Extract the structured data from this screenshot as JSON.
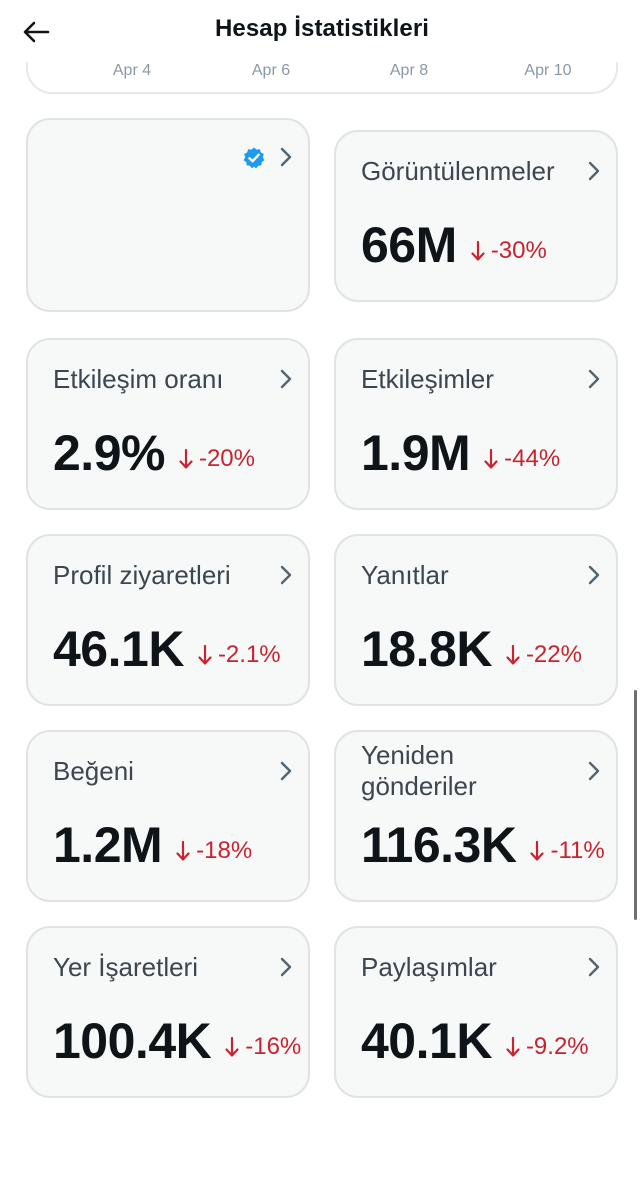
{
  "header": {
    "title": "Hesap İstatistikleri",
    "back_icon": "arrow-left-icon"
  },
  "chart": {
    "x_ticks": [
      "Apr 4",
      "Apr 6",
      "Apr 8",
      "Apr 10"
    ]
  },
  "cards": [
    {
      "label": "Görüntülenmeler",
      "value": "66M",
      "delta": "-30%"
    },
    {
      "label": "Etkileşim oranı",
      "value": "2.9%",
      "delta": "-20%"
    },
    {
      "label": "Etkileşimler",
      "value": "1.9M",
      "delta": "-44%"
    },
    {
      "label": "Profil ziyaretleri",
      "value": "46.1K",
      "delta": "-2.1%"
    },
    {
      "label": "Yanıtlar",
      "value": "18.8K",
      "delta": "-22%"
    },
    {
      "label": "Beğeni",
      "value": "1.2M",
      "delta": "-18%"
    },
    {
      "label": "Yeniden gönderiler",
      "value": "116.3K",
      "delta": "-11%"
    },
    {
      "label": "Yer İşaretleri",
      "value": "100.4K",
      "delta": "-16%"
    },
    {
      "label": "Paylaşımlar",
      "value": "40.1K",
      "delta": "-9.2%"
    }
  ],
  "colors": {
    "negative": "#c7242f",
    "verified": "#1d9bf0",
    "card_bg": "#f7f9f9",
    "card_border": "#dfe3e6"
  }
}
